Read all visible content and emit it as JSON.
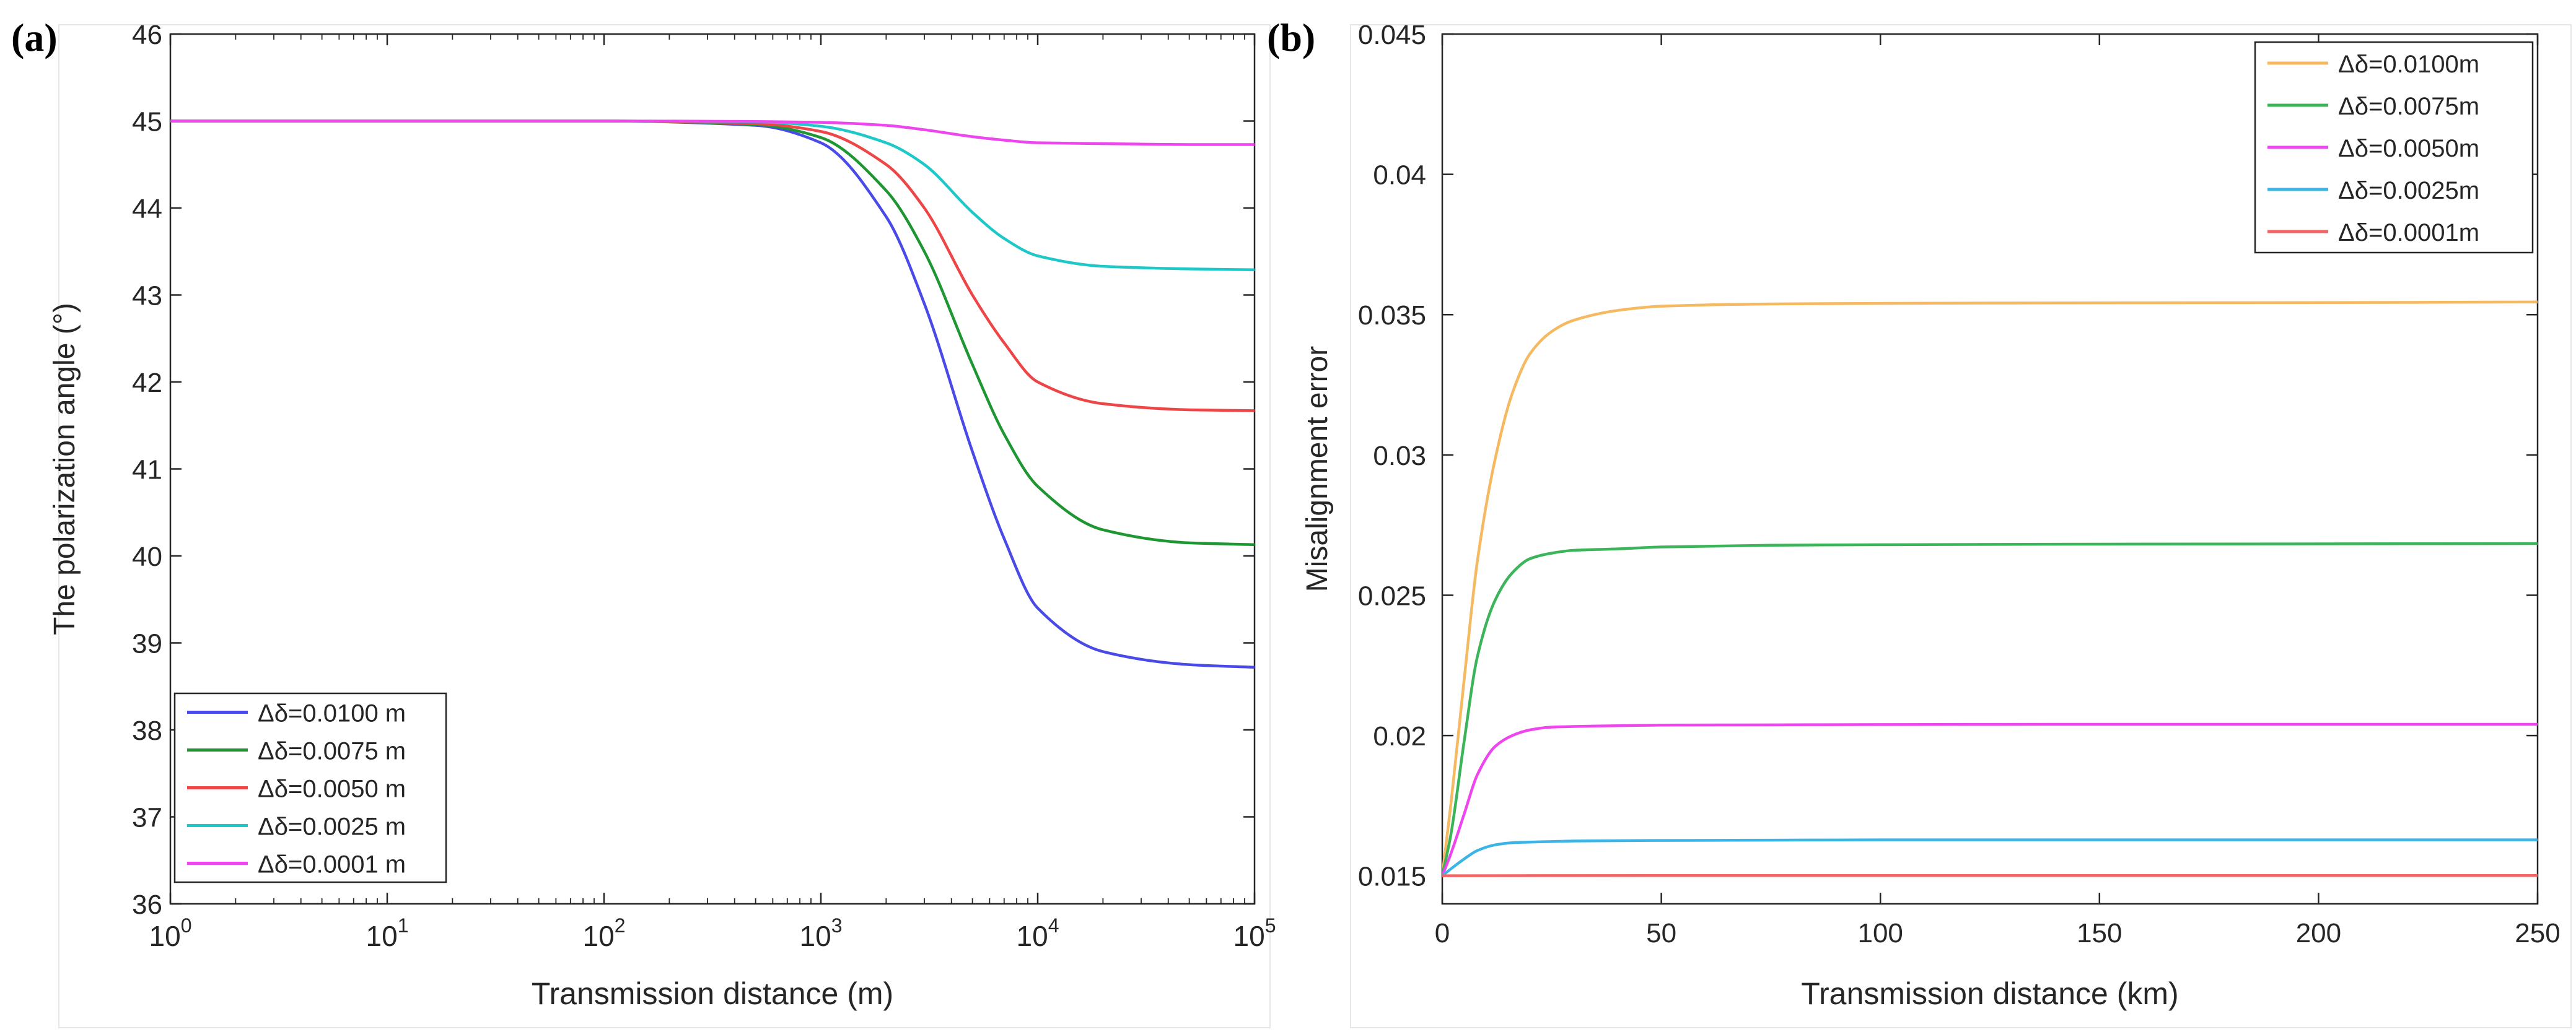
{
  "panels": [
    {
      "panel_label": "(a)",
      "chart_data": {
        "type": "line",
        "xscale": "log",
        "xlim": [
          1,
          100000
        ],
        "ylim": [
          36,
          46
        ],
        "xlabel": "Transmission distance (m)",
        "ylabel": "The polarization angle (°)",
        "xticks": [
          {
            "value": 1,
            "base": "10",
            "exp": "0"
          },
          {
            "value": 10,
            "base": "10",
            "exp": "1"
          },
          {
            "value": 100,
            "base": "10",
            "exp": "2"
          },
          {
            "value": 1000,
            "base": "10",
            "exp": "3"
          },
          {
            "value": 10000,
            "base": "10",
            "exp": "4"
          },
          {
            "value": 100000,
            "base": "10",
            "exp": "5"
          }
        ],
        "yticks": [
          {
            "value": 36,
            "label": "36"
          },
          {
            "value": 37,
            "label": "37"
          },
          {
            "value": 38,
            "label": "38"
          },
          {
            "value": 39,
            "label": "39"
          },
          {
            "value": 40,
            "label": "40"
          },
          {
            "value": 41,
            "label": "41"
          },
          {
            "value": 42,
            "label": "42"
          },
          {
            "value": 43,
            "label": "43"
          },
          {
            "value": 44,
            "label": "44"
          },
          {
            "value": 45,
            "label": "45"
          },
          {
            "value": 46,
            "label": "46"
          }
        ],
        "legend_position": "bottom-left",
        "series": [
          {
            "name": "Δδ=0.0100 m",
            "color": "#4a4ae8",
            "x": [
              1,
              100,
              500,
              1000,
              2000,
              3000,
              5000,
              7000,
              10000,
              20000,
              50000,
              100000
            ],
            "y": [
              45.0,
              45.0,
              44.95,
              44.75,
              43.9,
              42.9,
              41.2,
              40.2,
              39.4,
              38.9,
              38.75,
              38.72
            ]
          },
          {
            "name": "Δδ=0.0075 m",
            "color": "#1e9632",
            "x": [
              1,
              100,
              500,
              1000,
              2000,
              3000,
              5000,
              7000,
              10000,
              20000,
              50000,
              100000
            ],
            "y": [
              45.0,
              45.0,
              44.96,
              44.81,
              44.2,
              43.5,
              42.2,
              41.4,
              40.8,
              40.3,
              40.15,
              40.13
            ]
          },
          {
            "name": "Δδ=0.0050 m",
            "color": "#ee4646",
            "x": [
              1,
              100,
              500,
              1000,
              2000,
              3000,
              5000,
              7000,
              10000,
              20000,
              50000,
              100000
            ],
            "y": [
              45.0,
              45.0,
              44.97,
              44.88,
              44.5,
              44.0,
              43.0,
              42.45,
              42.0,
              41.75,
              41.68,
              41.67
            ]
          },
          {
            "name": "Δδ=0.0025 m",
            "color": "#1ec8c8",
            "x": [
              1,
              100,
              500,
              1000,
              2000,
              3000,
              5000,
              7000,
              10000,
              20000,
              50000,
              100000
            ],
            "y": [
              45.0,
              45.0,
              44.99,
              44.94,
              44.75,
              44.5,
              43.95,
              43.65,
              43.45,
              43.33,
              43.3,
              43.29
            ]
          },
          {
            "name": "Δδ=0.0001 m",
            "color": "#ee46ee",
            "x": [
              1,
              100,
              500,
              1000,
              2000,
              3000,
              5000,
              7000,
              10000,
              20000,
              50000,
              100000
            ],
            "y": [
              45.0,
              45.0,
              44.995,
              44.985,
              44.95,
              44.9,
              44.82,
              44.78,
              44.75,
              44.74,
              44.73,
              44.73
            ]
          }
        ]
      }
    },
    {
      "panel_label": "(b)",
      "chart_data": {
        "type": "line",
        "xscale": "linear",
        "xlim": [
          0,
          250
        ],
        "ylim": [
          0.014,
          0.045
        ],
        "xlabel": "Transmission distance (km)",
        "ylabel": "Misalignment error",
        "xticks": [
          {
            "value": 0,
            "label": "0"
          },
          {
            "value": 50,
            "label": "50"
          },
          {
            "value": 100,
            "label": "100"
          },
          {
            "value": 150,
            "label": "150"
          },
          {
            "value": 200,
            "label": "200"
          },
          {
            "value": 250,
            "label": "250"
          }
        ],
        "yticks": [
          {
            "value": 0.015,
            "label": "0.015"
          },
          {
            "value": 0.02,
            "label": "0.02"
          },
          {
            "value": 0.025,
            "label": "0.025"
          },
          {
            "value": 0.03,
            "label": "0.03"
          },
          {
            "value": 0.035,
            "label": "0.035"
          },
          {
            "value": 0.04,
            "label": "0.04"
          },
          {
            "value": 0.045,
            "label": "0.045"
          }
        ],
        "legend_position": "top-right",
        "series": [
          {
            "name": "Δδ=0.0100m",
            "color": "#f5b961",
            "x": [
              0,
              2,
              5,
              8,
              12,
              16,
              20,
              25,
              30,
              40,
              50,
              75,
              100,
              150,
              200,
              250
            ],
            "y": [
              0.015,
              0.0176,
              0.022,
              0.0262,
              0.0298,
              0.0322,
              0.0336,
              0.0344,
              0.0348,
              0.03515,
              0.0353,
              0.03538,
              0.0354,
              0.03542,
              0.03543,
              0.03545
            ]
          },
          {
            "name": "Δδ=0.0075m",
            "color": "#3cb45a",
            "x": [
              0,
              2,
              5,
              8,
              12,
              16,
              20,
              25,
              30,
              40,
              50,
              75,
              100,
              150,
              200,
              250
            ],
            "y": [
              0.015,
              0.0165,
              0.0198,
              0.0228,
              0.0248,
              0.0258,
              0.0263,
              0.0265,
              0.0266,
              0.02665,
              0.02672,
              0.02678,
              0.0268,
              0.02682,
              0.02683,
              0.02684
            ]
          },
          {
            "name": "Δδ=0.0050m",
            "color": "#ee46ee",
            "x": [
              0,
              2,
              5,
              8,
              12,
              16,
              20,
              25,
              30,
              40,
              50,
              75,
              100,
              150,
              200,
              250
            ],
            "y": [
              0.015,
              0.0158,
              0.0172,
              0.0186,
              0.0196,
              0.02,
              0.0202,
              0.0203,
              0.02032,
              0.02035,
              0.02037,
              0.02038,
              0.02039,
              0.0204,
              0.0204,
              0.0204
            ]
          },
          {
            "name": "Δδ=0.0025m",
            "color": "#3cb4e6",
            "x": [
              0,
              2,
              5,
              8,
              12,
              16,
              20,
              25,
              30,
              40,
              50,
              75,
              100,
              150,
              200,
              250
            ],
            "y": [
              0.015,
              0.01525,
              0.0156,
              0.0159,
              0.0161,
              0.01618,
              0.0162,
              0.01622,
              0.01624,
              0.01625,
              0.01626,
              0.01627,
              0.01628,
              0.01628,
              0.01628,
              0.01628
            ]
          },
          {
            "name": "Δδ=0.0001m",
            "color": "#f56464",
            "x": [
              0,
              50,
              100,
              150,
              200,
              250
            ],
            "y": [
              0.015,
              0.01501,
              0.01501,
              0.01501,
              0.01501,
              0.01501
            ]
          }
        ]
      }
    }
  ]
}
